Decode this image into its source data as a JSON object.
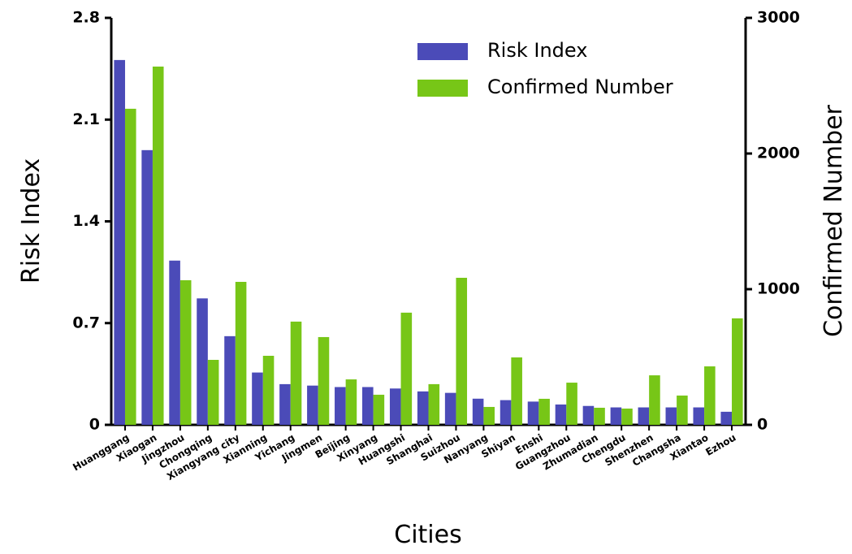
{
  "chart_data": {
    "type": "bar",
    "x_label": "Cities",
    "y_label": "Risk Index",
    "y2_label": "Confirmed Number",
    "categories": [
      "Huanggang",
      "Xiaogan",
      "Jingzhou",
      "Chongqing",
      "Xiangyang city",
      "Xianning",
      "Yichang",
      "Jingmen",
      "Beijing",
      "Xinyang",
      "Huangshi",
      "Shanghai",
      "Suizhou",
      "Nanyang",
      "Shiyan",
      "Enshi",
      "Guangzhou",
      "Zhumadian",
      "Chengdu",
      "Shenzhen",
      "Changsha",
      "Xiantao",
      "Ezhou"
    ],
    "series": [
      {
        "name": "Risk Index",
        "color": "#4b4bb8",
        "axis": "y",
        "values": [
          2.51,
          1.89,
          1.13,
          0.87,
          0.61,
          0.36,
          0.28,
          0.27,
          0.26,
          0.26,
          0.25,
          0.23,
          0.22,
          0.18,
          0.17,
          0.16,
          0.14,
          0.13,
          0.12,
          0.12,
          0.12,
          0.12,
          0.09
        ]
      },
      {
        "name": "Confirmed Number",
        "color": "#77c617",
        "axis": "y2",
        "values": [
          2330,
          2641,
          1066,
          479,
          1054,
          509,
          761,
          647,
          335,
          222,
          827,
          300,
          1084,
          132,
          497,
          192,
          311,
          126,
          120,
          365,
          216,
          431,
          785
        ]
      }
    ],
    "ylim": [
      0,
      2.8
    ],
    "yticks": [
      0,
      0.7,
      1.4,
      2.1,
      2.8
    ],
    "y2lim": [
      0,
      3000
    ],
    "y2ticks": [
      0,
      1000,
      2000,
      3000
    ],
    "legend": "upper right",
    "grid": false
  }
}
